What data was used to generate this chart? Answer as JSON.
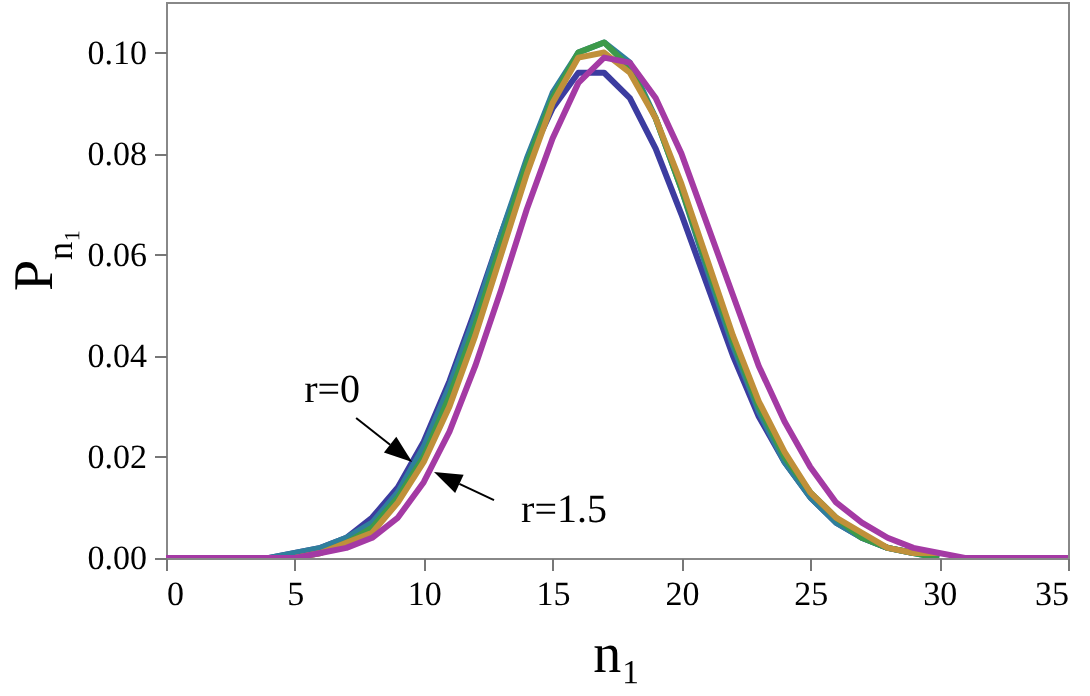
{
  "chart_data": {
    "type": "line",
    "xlabel": "n₁",
    "ylabel": "P$_{n₁}$",
    "x": [
      0,
      1,
      2,
      3,
      4,
      5,
      6,
      7,
      8,
      9,
      10,
      11,
      12,
      13,
      14,
      15,
      16,
      17,
      18,
      19,
      20,
      21,
      22,
      23,
      24,
      25,
      26,
      27,
      28,
      29,
      30,
      31,
      32,
      33,
      34,
      35
    ],
    "series": [
      {
        "color": "#3c3ca0",
        "values": [
          null,
          null,
          null,
          0,
          0,
          0.001,
          0.002,
          0.004,
          0.008,
          0.014,
          0.023,
          0.035,
          0.049,
          0.064,
          0.078,
          0.089,
          0.096,
          0.096,
          0.091,
          0.081,
          0.068,
          0.054,
          0.04,
          0.028,
          0.019,
          0.012,
          0.007,
          0.004,
          0.002,
          0.001,
          null,
          null,
          null,
          null,
          null,
          null
        ]
      },
      {
        "color": "#2f7f9c",
        "values": [
          null,
          null,
          null,
          0,
          0,
          0.001,
          0.002,
          0.004,
          0.007,
          0.013,
          0.022,
          0.034,
          0.048,
          0.064,
          0.079,
          0.092,
          0.1,
          0.102,
          0.098,
          0.087,
          0.073,
          0.057,
          0.042,
          0.029,
          0.019,
          0.012,
          0.007,
          0.004,
          0.002,
          0.001,
          0,
          null,
          null,
          null,
          null,
          null
        ]
      },
      {
        "color": "#3d9a4a",
        "values": [
          null,
          null,
          null,
          null,
          null,
          0,
          0.001,
          0.003,
          0.006,
          0.012,
          0.02,
          0.032,
          0.046,
          0.062,
          0.078,
          0.091,
          0.1,
          0.102,
          0.097,
          0.087,
          0.073,
          0.058,
          0.043,
          0.03,
          0.02,
          0.013,
          0.008,
          0.004,
          0.002,
          0.001,
          0,
          null,
          null,
          null,
          null,
          null
        ]
      },
      {
        "color": "#c0903a",
        "values": [
          null,
          null,
          null,
          null,
          null,
          0,
          0.001,
          0.003,
          0.005,
          0.011,
          0.019,
          0.03,
          0.044,
          0.06,
          0.076,
          0.09,
          0.099,
          0.1,
          0.096,
          0.087,
          0.074,
          0.059,
          0.044,
          0.031,
          0.021,
          0.013,
          0.008,
          0.005,
          0.002,
          0.001,
          0.001,
          null,
          null,
          null,
          null,
          null
        ]
      },
      {
        "color": "#a43aa4",
        "values": [
          0,
          0,
          0,
          0,
          0,
          0,
          0.001,
          0.002,
          0.004,
          0.008,
          0.015,
          0.025,
          0.038,
          0.053,
          0.069,
          0.083,
          0.094,
          0.099,
          0.098,
          0.091,
          0.08,
          0.066,
          0.052,
          0.038,
          0.027,
          0.018,
          0.011,
          0.007,
          0.004,
          0.002,
          0.001,
          0,
          0,
          0,
          0,
          0
        ]
      }
    ],
    "xlim": [
      0,
      35
    ],
    "xticks": [
      0,
      5,
      10,
      15,
      20,
      25,
      30,
      35
    ],
    "ylim": [
      0,
      0.11
    ],
    "yticks": [
      {
        "value": 0,
        "label": "0.00"
      },
      {
        "value": 0.02,
        "label": "0.02"
      },
      {
        "value": 0.04,
        "label": "0.04"
      },
      {
        "value": 0.06,
        "label": "0.06"
      },
      {
        "value": 0.08,
        "label": "0.08"
      },
      {
        "value": 0.1,
        "label": "0.10"
      }
    ],
    "grid": false,
    "marker": "none",
    "line_style": "solid",
    "annotations": [
      {
        "text": "r=0",
        "x": 9.55,
        "y": 0.019
      },
      {
        "text": "r=1.5",
        "x": 10.4,
        "y": 0.017
      }
    ]
  }
}
